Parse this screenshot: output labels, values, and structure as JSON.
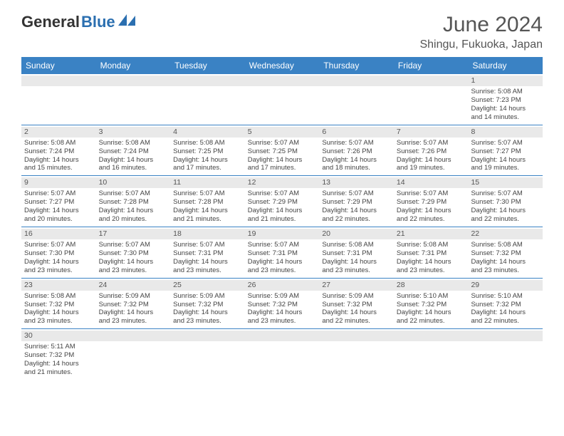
{
  "logo": {
    "text1": "General",
    "text2": "Blue"
  },
  "title": "June 2024",
  "location": "Shingu, Fukuoka, Japan",
  "colors": {
    "header_bg": "#3a82c4",
    "header_fg": "#ffffff",
    "daynum_bg": "#e9e9e9",
    "border": "#3a82c4",
    "logo_blue": "#2b6fb0",
    "text": "#444444"
  },
  "day_headers": [
    "Sunday",
    "Monday",
    "Tuesday",
    "Wednesday",
    "Thursday",
    "Friday",
    "Saturday"
  ],
  "weeks": [
    [
      {
        "empty": true
      },
      {
        "empty": true
      },
      {
        "empty": true
      },
      {
        "empty": true
      },
      {
        "empty": true
      },
      {
        "empty": true
      },
      {
        "day": "1",
        "sunrise": "Sunrise: 5:08 AM",
        "sunset": "Sunset: 7:23 PM",
        "d1": "Daylight: 14 hours",
        "d2": "and 14 minutes."
      }
    ],
    [
      {
        "day": "2",
        "sunrise": "Sunrise: 5:08 AM",
        "sunset": "Sunset: 7:24 PM",
        "d1": "Daylight: 14 hours",
        "d2": "and 15 minutes."
      },
      {
        "day": "3",
        "sunrise": "Sunrise: 5:08 AM",
        "sunset": "Sunset: 7:24 PM",
        "d1": "Daylight: 14 hours",
        "d2": "and 16 minutes."
      },
      {
        "day": "4",
        "sunrise": "Sunrise: 5:08 AM",
        "sunset": "Sunset: 7:25 PM",
        "d1": "Daylight: 14 hours",
        "d2": "and 17 minutes."
      },
      {
        "day": "5",
        "sunrise": "Sunrise: 5:07 AM",
        "sunset": "Sunset: 7:25 PM",
        "d1": "Daylight: 14 hours",
        "d2": "and 17 minutes."
      },
      {
        "day": "6",
        "sunrise": "Sunrise: 5:07 AM",
        "sunset": "Sunset: 7:26 PM",
        "d1": "Daylight: 14 hours",
        "d2": "and 18 minutes."
      },
      {
        "day": "7",
        "sunrise": "Sunrise: 5:07 AM",
        "sunset": "Sunset: 7:26 PM",
        "d1": "Daylight: 14 hours",
        "d2": "and 19 minutes."
      },
      {
        "day": "8",
        "sunrise": "Sunrise: 5:07 AM",
        "sunset": "Sunset: 7:27 PM",
        "d1": "Daylight: 14 hours",
        "d2": "and 19 minutes."
      }
    ],
    [
      {
        "day": "9",
        "sunrise": "Sunrise: 5:07 AM",
        "sunset": "Sunset: 7:27 PM",
        "d1": "Daylight: 14 hours",
        "d2": "and 20 minutes."
      },
      {
        "day": "10",
        "sunrise": "Sunrise: 5:07 AM",
        "sunset": "Sunset: 7:28 PM",
        "d1": "Daylight: 14 hours",
        "d2": "and 20 minutes."
      },
      {
        "day": "11",
        "sunrise": "Sunrise: 5:07 AM",
        "sunset": "Sunset: 7:28 PM",
        "d1": "Daylight: 14 hours",
        "d2": "and 21 minutes."
      },
      {
        "day": "12",
        "sunrise": "Sunrise: 5:07 AM",
        "sunset": "Sunset: 7:29 PM",
        "d1": "Daylight: 14 hours",
        "d2": "and 21 minutes."
      },
      {
        "day": "13",
        "sunrise": "Sunrise: 5:07 AM",
        "sunset": "Sunset: 7:29 PM",
        "d1": "Daylight: 14 hours",
        "d2": "and 22 minutes."
      },
      {
        "day": "14",
        "sunrise": "Sunrise: 5:07 AM",
        "sunset": "Sunset: 7:29 PM",
        "d1": "Daylight: 14 hours",
        "d2": "and 22 minutes."
      },
      {
        "day": "15",
        "sunrise": "Sunrise: 5:07 AM",
        "sunset": "Sunset: 7:30 PM",
        "d1": "Daylight: 14 hours",
        "d2": "and 22 minutes."
      }
    ],
    [
      {
        "day": "16",
        "sunrise": "Sunrise: 5:07 AM",
        "sunset": "Sunset: 7:30 PM",
        "d1": "Daylight: 14 hours",
        "d2": "and 23 minutes."
      },
      {
        "day": "17",
        "sunrise": "Sunrise: 5:07 AM",
        "sunset": "Sunset: 7:30 PM",
        "d1": "Daylight: 14 hours",
        "d2": "and 23 minutes."
      },
      {
        "day": "18",
        "sunrise": "Sunrise: 5:07 AM",
        "sunset": "Sunset: 7:31 PM",
        "d1": "Daylight: 14 hours",
        "d2": "and 23 minutes."
      },
      {
        "day": "19",
        "sunrise": "Sunrise: 5:07 AM",
        "sunset": "Sunset: 7:31 PM",
        "d1": "Daylight: 14 hours",
        "d2": "and 23 minutes."
      },
      {
        "day": "20",
        "sunrise": "Sunrise: 5:08 AM",
        "sunset": "Sunset: 7:31 PM",
        "d1": "Daylight: 14 hours",
        "d2": "and 23 minutes."
      },
      {
        "day": "21",
        "sunrise": "Sunrise: 5:08 AM",
        "sunset": "Sunset: 7:31 PM",
        "d1": "Daylight: 14 hours",
        "d2": "and 23 minutes."
      },
      {
        "day": "22",
        "sunrise": "Sunrise: 5:08 AM",
        "sunset": "Sunset: 7:32 PM",
        "d1": "Daylight: 14 hours",
        "d2": "and 23 minutes."
      }
    ],
    [
      {
        "day": "23",
        "sunrise": "Sunrise: 5:08 AM",
        "sunset": "Sunset: 7:32 PM",
        "d1": "Daylight: 14 hours",
        "d2": "and 23 minutes."
      },
      {
        "day": "24",
        "sunrise": "Sunrise: 5:09 AM",
        "sunset": "Sunset: 7:32 PM",
        "d1": "Daylight: 14 hours",
        "d2": "and 23 minutes."
      },
      {
        "day": "25",
        "sunrise": "Sunrise: 5:09 AM",
        "sunset": "Sunset: 7:32 PM",
        "d1": "Daylight: 14 hours",
        "d2": "and 23 minutes."
      },
      {
        "day": "26",
        "sunrise": "Sunrise: 5:09 AM",
        "sunset": "Sunset: 7:32 PM",
        "d1": "Daylight: 14 hours",
        "d2": "and 23 minutes."
      },
      {
        "day": "27",
        "sunrise": "Sunrise: 5:09 AM",
        "sunset": "Sunset: 7:32 PM",
        "d1": "Daylight: 14 hours",
        "d2": "and 22 minutes."
      },
      {
        "day": "28",
        "sunrise": "Sunrise: 5:10 AM",
        "sunset": "Sunset: 7:32 PM",
        "d1": "Daylight: 14 hours",
        "d2": "and 22 minutes."
      },
      {
        "day": "29",
        "sunrise": "Sunrise: 5:10 AM",
        "sunset": "Sunset: 7:32 PM",
        "d1": "Daylight: 14 hours",
        "d2": "and 22 minutes."
      }
    ],
    [
      {
        "day": "30",
        "sunrise": "Sunrise: 5:11 AM",
        "sunset": "Sunset: 7:32 PM",
        "d1": "Daylight: 14 hours",
        "d2": "and 21 minutes."
      },
      {
        "empty": true
      },
      {
        "empty": true
      },
      {
        "empty": true
      },
      {
        "empty": true
      },
      {
        "empty": true
      },
      {
        "empty": true
      }
    ]
  ]
}
